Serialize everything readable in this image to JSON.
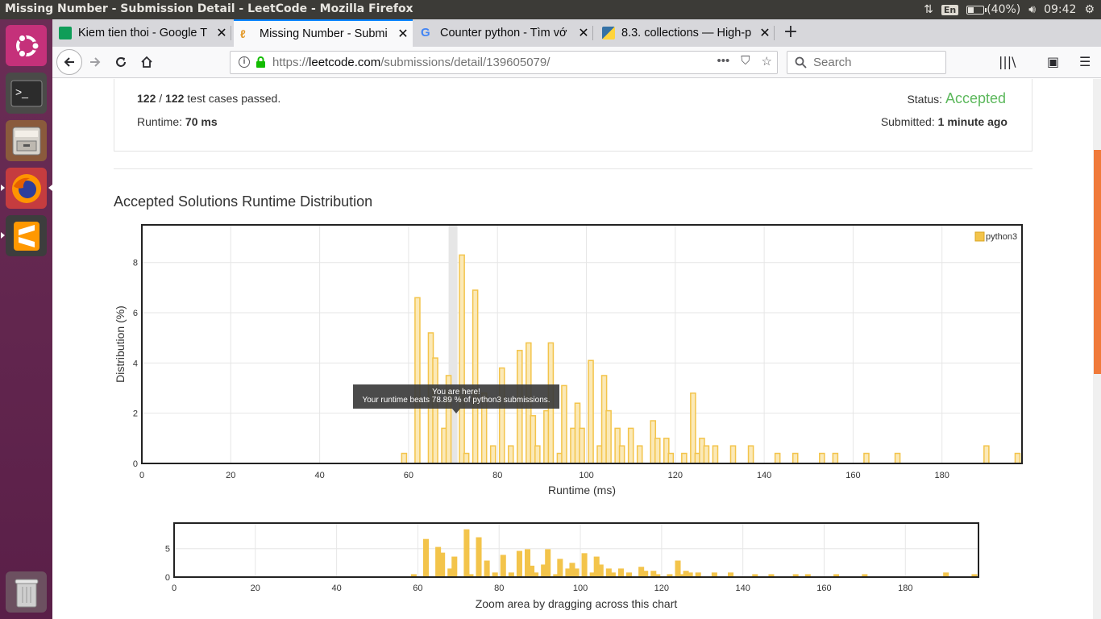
{
  "window": {
    "title": "Missing Number - Submission Detail - LeetCode - Mozilla Firefox",
    "keyboard_layout": "En",
    "battery_text": "(40%)",
    "battery_level": 0.4,
    "clock": "09:42"
  },
  "tabs": [
    {
      "label": "Kiem tien thoi - Google T",
      "icon": "google-sheets-icon",
      "active": false
    },
    {
      "label": "Missing Number - Submi",
      "icon": "leetcode-icon",
      "active": true
    },
    {
      "label": "Counter python - Tìm vớ",
      "icon": "google-icon",
      "active": false
    },
    {
      "label": "8.3. collections — High-p",
      "icon": "python-icon",
      "active": false
    }
  ],
  "navbar": {
    "url_scheme": "https://",
    "url_host": "leetcode.com",
    "url_path": "/submissions/detail/139605079/",
    "search_placeholder": "Search"
  },
  "submission": {
    "passed": "122",
    "total": "122",
    "passed_suffix": "test cases passed.",
    "runtime_label": "Runtime:",
    "runtime_value": "70 ms",
    "status_label": "Status:",
    "status_value": "Accepted",
    "submitted_label": "Submitted:",
    "submitted_value": "1 minute ago"
  },
  "section_title": "Accepted Solutions Runtime Distribution",
  "tooltip": {
    "line1": "You are here!",
    "line2": "Your runtime beats 78.89 % of python3 submissions."
  },
  "chart_data": [
    {
      "type": "bar",
      "xlabel": "Runtime (ms)",
      "ylabel": "Distribution (%)",
      "xlim": [
        0,
        198
      ],
      "ylim": [
        0,
        9.5
      ],
      "x_ticks": [
        0,
        20,
        40,
        60,
        80,
        100,
        120,
        140,
        160,
        180
      ],
      "y_ticks": [
        0,
        2,
        4,
        6,
        8
      ],
      "legend": "top-right",
      "grid": true,
      "highlight_x": 70,
      "series": [
        {
          "name": "python3",
          "color": "#f3c44b",
          "x": [
            59,
            62,
            65,
            66,
            68,
            69,
            72,
            73,
            75,
            77,
            79,
            81,
            83,
            85,
            87,
            88,
            89,
            91,
            92,
            94,
            95,
            97,
            98,
            99,
            101,
            103,
            104,
            105,
            107,
            108,
            110,
            112,
            115,
            116,
            118,
            119,
            122,
            124,
            125,
            126,
            127,
            129,
            133,
            137,
            143,
            147,
            153,
            156,
            163,
            170,
            190,
            197
          ],
          "y": [
            0.4,
            6.6,
            5.2,
            4.2,
            1.4,
            3.5,
            8.3,
            0.4,
            6.9,
            2.8,
            0.7,
            3.8,
            0.7,
            4.5,
            4.8,
            1.9,
            0.7,
            2.1,
            4.8,
            0.4,
            3.1,
            1.4,
            2.4,
            1.4,
            4.1,
            0.7,
            3.5,
            2.1,
            1.4,
            0.7,
            1.4,
            0.7,
            1.7,
            1.0,
            1.0,
            0.4,
            0.4,
            2.8,
            0.4,
            1.0,
            0.7,
            0.7,
            0.7,
            0.7,
            0.4,
            0.4,
            0.4,
            0.4,
            0.4,
            0.4,
            0.7,
            0.4
          ]
        }
      ]
    },
    {
      "type": "bar",
      "title": "",
      "xlabel": "Zoom area by dragging across this chart",
      "xlim": [
        0,
        198
      ],
      "ylim": [
        0,
        9.5
      ],
      "x_ticks": [
        0,
        20,
        40,
        60,
        80,
        100,
        120,
        140,
        160,
        180
      ],
      "y_ticks": [
        0,
        5
      ],
      "grid": true
    }
  ]
}
